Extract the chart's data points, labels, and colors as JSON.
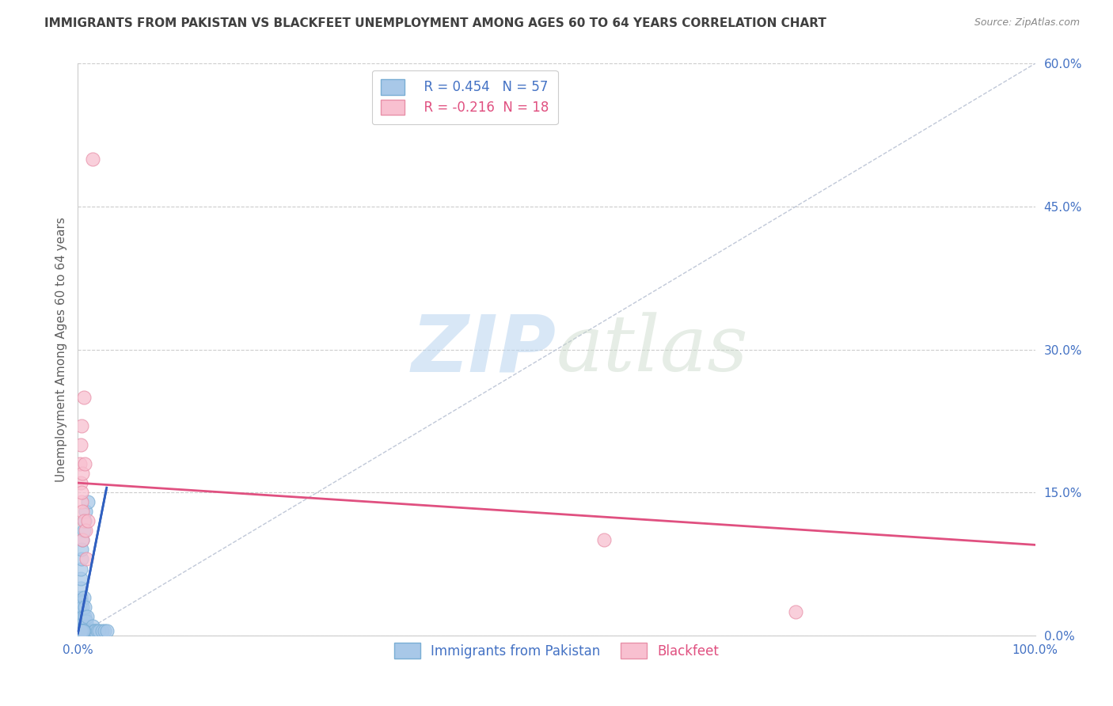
{
  "title": "IMMIGRANTS FROM PAKISTAN VS BLACKFEET UNEMPLOYMENT AMONG AGES 60 TO 64 YEARS CORRELATION CHART",
  "source": "Source: ZipAtlas.com",
  "ylabel": "Unemployment Among Ages 60 to 64 years",
  "xlim": [
    0,
    100
  ],
  "ylim": [
    0,
    60
  ],
  "ytick_values": [
    0,
    15,
    30,
    45,
    60
  ],
  "xtick_values": [
    0,
    100
  ],
  "blue_R": 0.454,
  "blue_N": 57,
  "pink_R": -0.216,
  "pink_N": 18,
  "legend_label_blue": "Immigrants from Pakistan",
  "legend_label_pink": "Blackfeet",
  "watermark_zip": "ZIP",
  "watermark_atlas": "atlas",
  "background_color": "#ffffff",
  "grid_color": "#cccccc",
  "blue_dot_color": "#a8c8e8",
  "blue_edge_color": "#7aaed4",
  "blue_line_color": "#3060c0",
  "pink_dot_color": "#f8c0d0",
  "pink_edge_color": "#e890a8",
  "pink_line_color": "#e05080",
  "title_color": "#404040",
  "source_color": "#888888",
  "axis_color": "#4472c4",
  "ylabel_color": "#606060",
  "diag_color": "#c0c8d8",
  "blue_scatter_x": [
    0.15,
    0.18,
    0.22,
    0.25,
    0.28,
    0.3,
    0.3,
    0.3,
    0.3,
    0.3,
    0.35,
    0.35,
    0.38,
    0.4,
    0.4,
    0.42,
    0.45,
    0.5,
    0.5,
    0.5,
    0.5,
    0.55,
    0.6,
    0.6,
    0.65,
    0.7,
    0.7,
    0.75,
    0.8,
    0.8,
    0.85,
    0.9,
    0.95,
    1.0,
    1.0,
    1.2,
    1.3,
    1.5,
    1.5,
    1.7,
    1.8,
    2.0,
    2.2,
    2.5,
    2.8,
    3.0,
    0.3,
    0.4,
    0.5,
    0.35,
    0.45,
    0.55,
    0.65,
    0.28,
    0.32,
    0.42,
    0.58
  ],
  "blue_scatter_y": [
    0.5,
    1.0,
    2.0,
    3.0,
    0.5,
    4.0,
    5.0,
    6.0,
    7.0,
    0.8,
    1.5,
    8.0,
    2.5,
    3.5,
    9.0,
    1.0,
    2.0,
    0.5,
    1.0,
    3.0,
    10.0,
    2.0,
    11.0,
    4.0,
    1.5,
    12.0,
    2.0,
    3.0,
    13.0,
    0.5,
    1.0,
    1.5,
    2.0,
    14.0,
    0.5,
    0.5,
    0.5,
    0.5,
    1.0,
    0.5,
    0.5,
    0.5,
    0.5,
    0.5,
    0.5,
    0.5,
    0.5,
    0.5,
    0.5,
    0.5,
    0.5,
    0.5,
    0.5,
    0.5,
    0.5,
    0.5,
    0.5
  ],
  "pink_scatter_x": [
    0.2,
    0.3,
    0.3,
    0.35,
    0.4,
    0.4,
    0.45,
    0.5,
    0.5,
    0.6,
    0.65,
    0.7,
    0.8,
    0.9,
    1.0,
    1.5,
    55.0,
    75.0
  ],
  "pink_scatter_y": [
    18.0,
    16.0,
    20.0,
    14.0,
    15.0,
    22.0,
    13.0,
    17.0,
    10.0,
    25.0,
    12.0,
    18.0,
    11.0,
    8.0,
    12.0,
    50.0,
    10.0,
    2.5
  ],
  "blue_line_x0": 0.0,
  "blue_line_y0": 0.2,
  "blue_line_x1": 3.0,
  "blue_line_y1": 15.5,
  "pink_line_x0": 0.0,
  "pink_line_y0": 16.0,
  "pink_line_x1": 100.0,
  "pink_line_y1": 9.5
}
